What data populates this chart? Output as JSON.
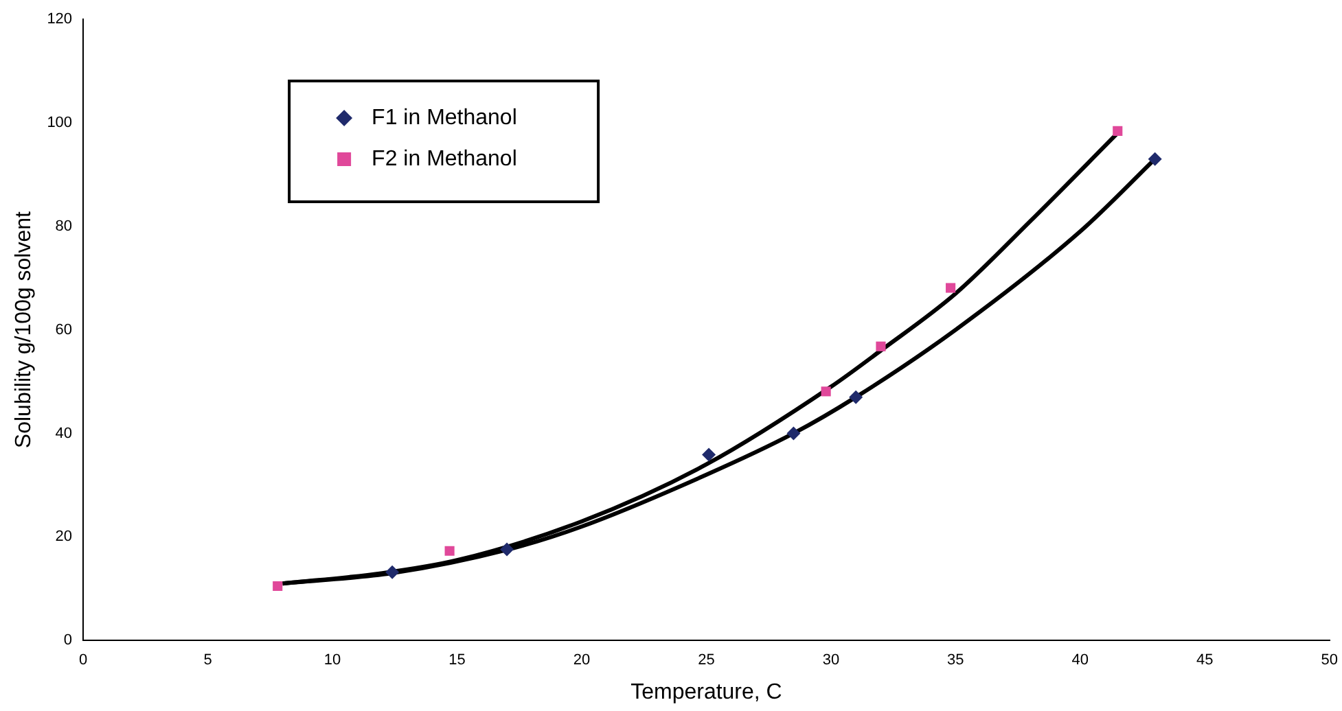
{
  "chart_data": {
    "type": "scatter",
    "xlabel": "Temperature, C",
    "ylabel": "Solubility g/100g solvent",
    "xlim": [
      0,
      50
    ],
    "xticks": [
      0,
      5,
      10,
      15,
      20,
      25,
      30,
      35,
      40,
      45,
      50
    ],
    "ylim": [
      0,
      120
    ],
    "yticks": [
      0,
      20,
      40,
      60,
      80,
      100,
      120
    ],
    "grid": false,
    "legend": "top left",
    "series": [
      {
        "name": "F1 in Methanol",
        "color": "#1f2a6b",
        "marker": "diamond",
        "x": [
          12.4,
          17.0,
          25.1,
          28.5,
          31.0,
          43.0
        ],
        "values": [
          13.2,
          17.6,
          35.9,
          40.0,
          47.0,
          93.0
        ]
      },
      {
        "name": "F2 in Methanol",
        "color": "#e0489a",
        "marker": "square",
        "x": [
          7.8,
          14.7,
          29.8,
          32.0,
          34.8,
          41.5
        ],
        "values": [
          10.5,
          17.3,
          48.1,
          56.8,
          68.1,
          98.4
        ]
      },
      {
        "type": "line",
        "color": "#000000",
        "marker": "none",
        "x": [
          8,
          12.4,
          17,
          20,
          25,
          28.5,
          31,
          35,
          40,
          43
        ],
        "values": [
          11,
          13,
          17.5,
          22,
          32,
          40,
          47,
          60,
          79,
          93
        ]
      },
      {
        "type": "line",
        "color": "#000000",
        "marker": "none",
        "x": [
          8,
          12,
          15,
          20,
          25,
          30,
          32,
          35,
          38,
          41.5
        ],
        "values": [
          11,
          13,
          15.5,
          23,
          34,
          49,
          56,
          67,
          81,
          98
        ]
      }
    ]
  }
}
